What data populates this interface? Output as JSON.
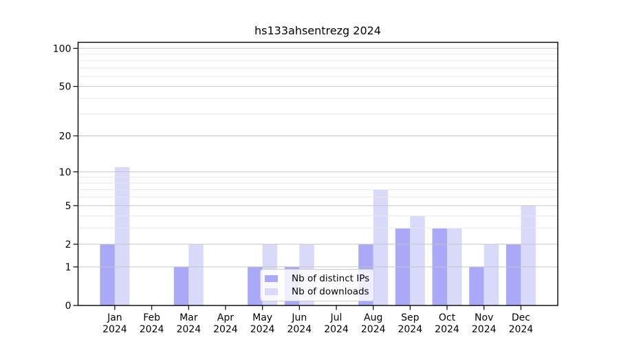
{
  "chart_data": {
    "type": "bar",
    "title": "hs133ahsentrezg 2024",
    "categories": [
      "Jan 2024",
      "Feb 2024",
      "Mar 2024",
      "Apr 2024",
      "May 2024",
      "Jun 2024",
      "Jul 2024",
      "Aug 2024",
      "Sep 2024",
      "Oct 2024",
      "Nov 2024",
      "Dec 2024"
    ],
    "x_tick_labels": [
      {
        "line1": "Jan",
        "line2": "2024"
      },
      {
        "line1": "Feb",
        "line2": "2024"
      },
      {
        "line1": "Mar",
        "line2": "2024"
      },
      {
        "line1": "Apr",
        "line2": "2024"
      },
      {
        "line1": "May",
        "line2": "2024"
      },
      {
        "line1": "Jun",
        "line2": "2024"
      },
      {
        "line1": "Jul",
        "line2": "2024"
      },
      {
        "line1": "Aug",
        "line2": "2024"
      },
      {
        "line1": "Sep",
        "line2": "2024"
      },
      {
        "line1": "Oct",
        "line2": "2024"
      },
      {
        "line1": "Nov",
        "line2": "2024"
      },
      {
        "line1": "Dec",
        "line2": "2024"
      }
    ],
    "series": [
      {
        "name": "Nb of distinct IPs",
        "color": "#a9a9f8",
        "values": [
          2,
          0,
          1,
          0,
          1,
          1,
          0,
          2,
          3,
          3,
          1,
          2
        ]
      },
      {
        "name": "Nb of downloads",
        "color": "#d9d9f9",
        "values": [
          11,
          0,
          2,
          0,
          2,
          2,
          0,
          7,
          4,
          3,
          2,
          5
        ]
      }
    ],
    "yscale": "log10(1+y)",
    "ylim": [
      0,
      111
    ],
    "yticks": [
      0,
      1,
      2,
      5,
      10,
      20,
      50,
      100
    ],
    "minor_gridlines": [
      3,
      4,
      6,
      7,
      8,
      9,
      30,
      40,
      60,
      70,
      80,
      90
    ],
    "grid": true,
    "legend_position": "lower center-right inside plot",
    "colors": {
      "major_grid": "#c5c5c5",
      "minor_grid": "#e8e8e8",
      "axis": "#000000",
      "text": "#000000",
      "background": "#ffffff"
    }
  }
}
